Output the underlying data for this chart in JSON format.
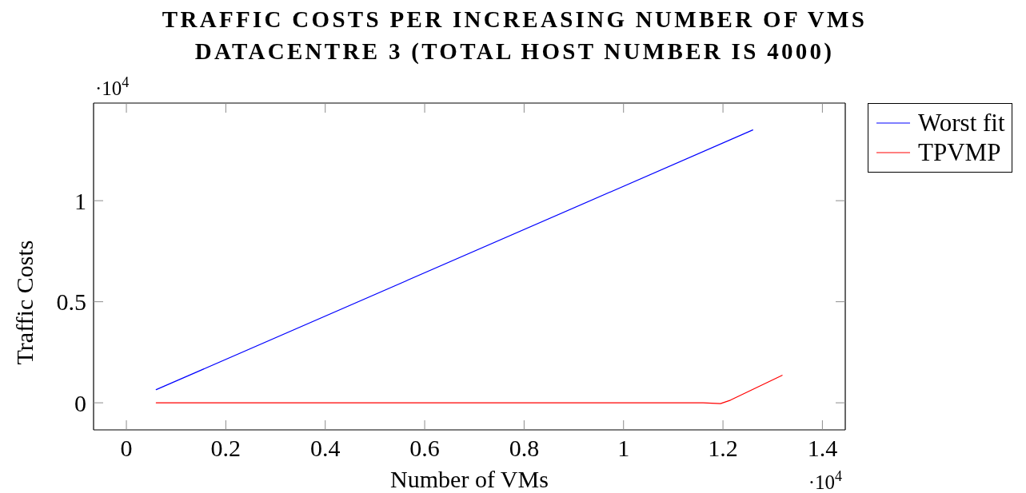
{
  "chart_data": {
    "type": "line",
    "title": "TRAFFIC COSTS PER INCREASING NUMBER OF VMS",
    "subtitle": "DATACENTRE 3 (TOTAL HOST NUMBER IS 4000)",
    "xlabel": "Number of VMs",
    "ylabel": "Traffic Costs",
    "annotations": [
      "·10$^{4}$",
      "·10$^{4}$"
    ],
    "xlim": [
      -0.066,
      1.446
    ],
    "ylim": [
      -0.134,
      1.483
    ],
    "xticks": [
      0,
      0.2,
      0.4,
      0.6,
      0.8,
      1,
      1.2,
      1.4
    ],
    "yticks": [
      0,
      0.5,
      1
    ],
    "legend": "top right",
    "series": [
      {
        "name": "Worst fit",
        "color": "#0000ff",
        "x": [
          0.06,
          1.26
        ],
        "values": [
          0.065,
          1.35
        ]
      },
      {
        "name": "TPVMP",
        "color": "#ff0000",
        "x": [
          0.06,
          1.16,
          1.195,
          1.215,
          1.319
        ],
        "values": [
          0,
          0,
          -0.004,
          0.013,
          0.136
        ]
      }
    ]
  }
}
